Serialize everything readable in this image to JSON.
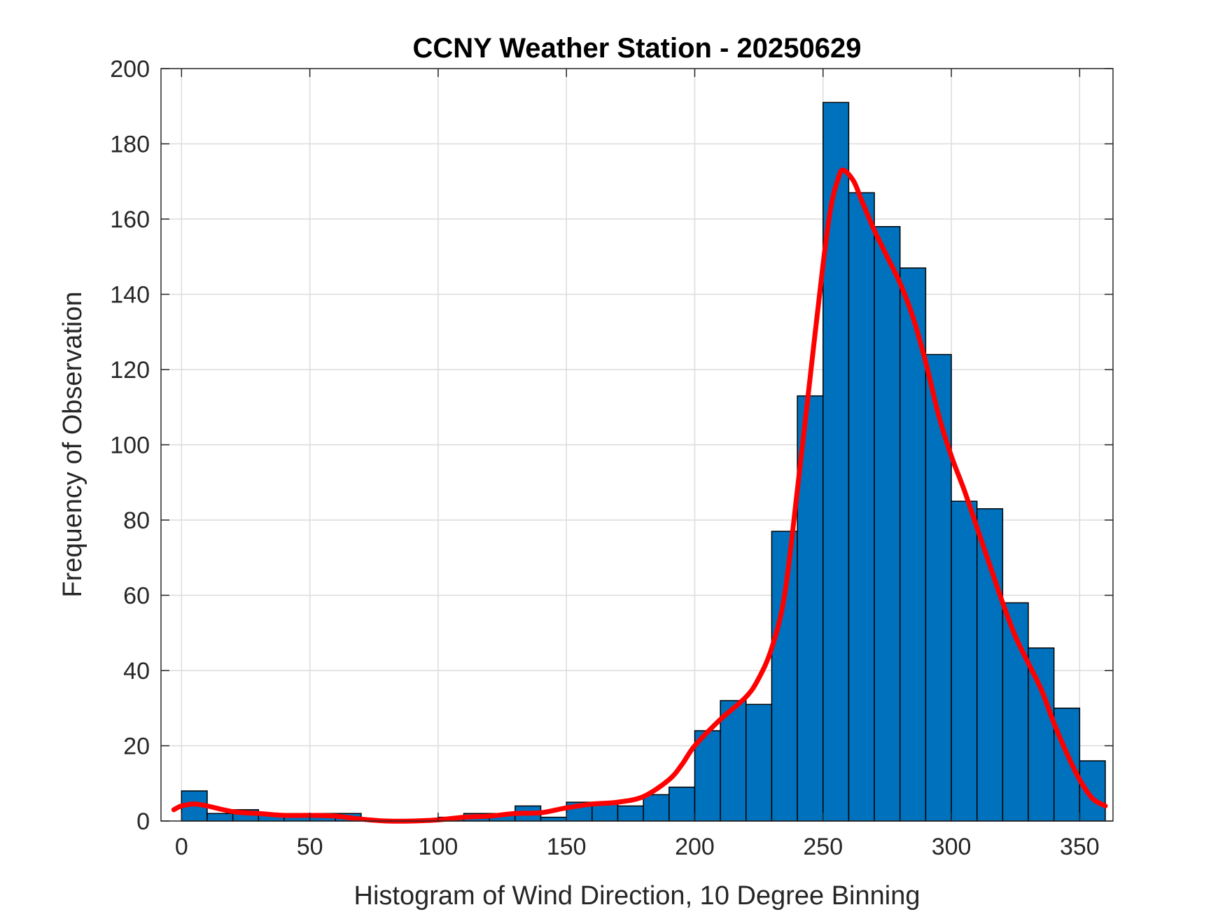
{
  "chart_data": {
    "type": "bar",
    "title": "CCNY Weather Station - 20250629",
    "xlabel": "Histogram of Wind Direction, 10 Degree Binning",
    "ylabel": "Frequency of Observation",
    "xlim": [
      -8,
      363
    ],
    "ylim": [
      0,
      200
    ],
    "xticks": [
      0,
      50,
      100,
      150,
      200,
      250,
      300,
      350
    ],
    "yticks": [
      0,
      20,
      40,
      60,
      80,
      100,
      120,
      140,
      160,
      180,
      200
    ],
    "grid": true,
    "bin_width": 10,
    "bins": [
      {
        "x0": 0,
        "value": 8
      },
      {
        "x0": 10,
        "value": 2
      },
      {
        "x0": 20,
        "value": 3
      },
      {
        "x0": 30,
        "value": 2
      },
      {
        "x0": 40,
        "value": 2
      },
      {
        "x0": 50,
        "value": 2
      },
      {
        "x0": 60,
        "value": 2
      },
      {
        "x0": 70,
        "value": 0
      },
      {
        "x0": 80,
        "value": 0
      },
      {
        "x0": 90,
        "value": 0
      },
      {
        "x0": 100,
        "value": 1
      },
      {
        "x0": 110,
        "value": 2
      },
      {
        "x0": 120,
        "value": 2
      },
      {
        "x0": 130,
        "value": 4
      },
      {
        "x0": 140,
        "value": 1
      },
      {
        "x0": 150,
        "value": 5
      },
      {
        "x0": 160,
        "value": 5
      },
      {
        "x0": 170,
        "value": 4
      },
      {
        "x0": 180,
        "value": 7
      },
      {
        "x0": 190,
        "value": 9
      },
      {
        "x0": 200,
        "value": 24
      },
      {
        "x0": 210,
        "value": 32
      },
      {
        "x0": 220,
        "value": 31
      },
      {
        "x0": 230,
        "value": 77
      },
      {
        "x0": 240,
        "value": 113
      },
      {
        "x0": 250,
        "value": 191
      },
      {
        "x0": 260,
        "value": 167
      },
      {
        "x0": 270,
        "value": 158
      },
      {
        "x0": 280,
        "value": 147
      },
      {
        "x0": 290,
        "value": 124
      },
      {
        "x0": 300,
        "value": 85
      },
      {
        "x0": 310,
        "value": 83
      },
      {
        "x0": 320,
        "value": 58
      },
      {
        "x0": 330,
        "value": 46
      },
      {
        "x0": 340,
        "value": 30
      },
      {
        "x0": 350,
        "value": 16
      }
    ],
    "bar_color": "#0072BD",
    "fit_line": {
      "color": "#FF0000",
      "points": [
        [
          -3,
          3
        ],
        [
          0,
          4
        ],
        [
          5,
          4.5
        ],
        [
          10,
          4
        ],
        [
          20,
          2.5
        ],
        [
          30,
          2
        ],
        [
          40,
          1.5
        ],
        [
          50,
          1.5
        ],
        [
          60,
          1.3
        ],
        [
          70,
          0.5
        ],
        [
          80,
          0
        ],
        [
          90,
          0
        ],
        [
          100,
          0.3
        ],
        [
          110,
          1
        ],
        [
          120,
          1.3
        ],
        [
          130,
          2
        ],
        [
          140,
          2.2
        ],
        [
          150,
          3.5
        ],
        [
          160,
          4.5
        ],
        [
          170,
          5
        ],
        [
          180,
          6.5
        ],
        [
          190,
          11
        ],
        [
          195,
          15
        ],
        [
          200,
          20
        ],
        [
          210,
          27
        ],
        [
          220,
          33
        ],
        [
          225,
          38
        ],
        [
          230,
          46
        ],
        [
          235,
          60
        ],
        [
          240,
          88
        ],
        [
          245,
          118
        ],
        [
          250,
          148
        ],
        [
          253,
          163
        ],
        [
          256,
          171
        ],
        [
          258,
          173
        ],
        [
          262,
          170
        ],
        [
          265,
          165
        ],
        [
          270,
          157
        ],
        [
          275,
          150
        ],
        [
          280,
          143
        ],
        [
          285,
          134
        ],
        [
          290,
          122
        ],
        [
          295,
          108
        ],
        [
          300,
          97
        ],
        [
          305,
          88
        ],
        [
          310,
          78
        ],
        [
          315,
          68
        ],
        [
          320,
          58
        ],
        [
          325,
          49
        ],
        [
          330,
          42
        ],
        [
          335,
          35
        ],
        [
          340,
          26
        ],
        [
          345,
          18
        ],
        [
          350,
          11
        ],
        [
          355,
          6
        ],
        [
          360,
          4
        ]
      ]
    }
  }
}
